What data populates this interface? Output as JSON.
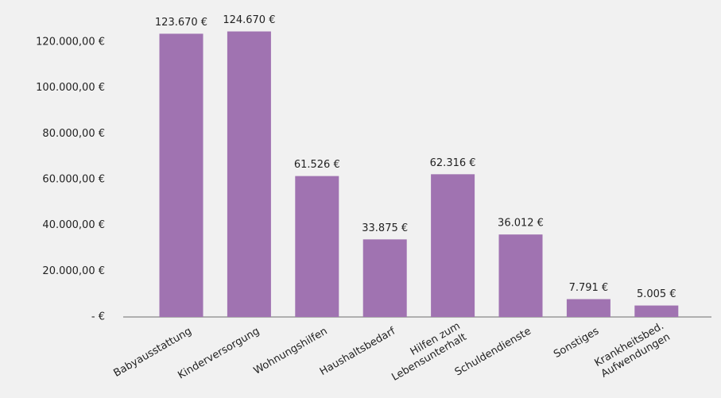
{
  "chart_data": {
    "type": "bar",
    "categories": [
      "Babyausstattung",
      "Kinderversorgung",
      "Wohnungshilfen",
      "Haushaltsbedarf",
      "Hilfen zum\nLebensunterhalt",
      "Schuldendienste",
      "Sonstiges",
      "Krankheitsbed.\nAufwendungen"
    ],
    "values": [
      123670,
      124670,
      61526,
      33875,
      62316,
      36012,
      7791,
      5005
    ],
    "value_labels": [
      "123.670 €",
      "124.670 €",
      "61.526 €",
      "33.875 €",
      "62.316 €",
      "36.012 €",
      "7.791 €",
      "5.005 €"
    ],
    "color": "#a073b1",
    "ylim": [
      0,
      130000
    ],
    "yticks": [
      {
        "value": 0,
        "label": "- €"
      },
      {
        "value": 20000,
        "label": "20.000,00 €"
      },
      {
        "value": 40000,
        "label": "40.000,00 €"
      },
      {
        "value": 60000,
        "label": "60.000,00 €"
      },
      {
        "value": 80000,
        "label": "80.000,00 €"
      },
      {
        "value": 100000,
        "label": "100.000,00 €"
      },
      {
        "value": 120000,
        "label": "120.000,00 €"
      }
    ],
    "grid": false
  }
}
